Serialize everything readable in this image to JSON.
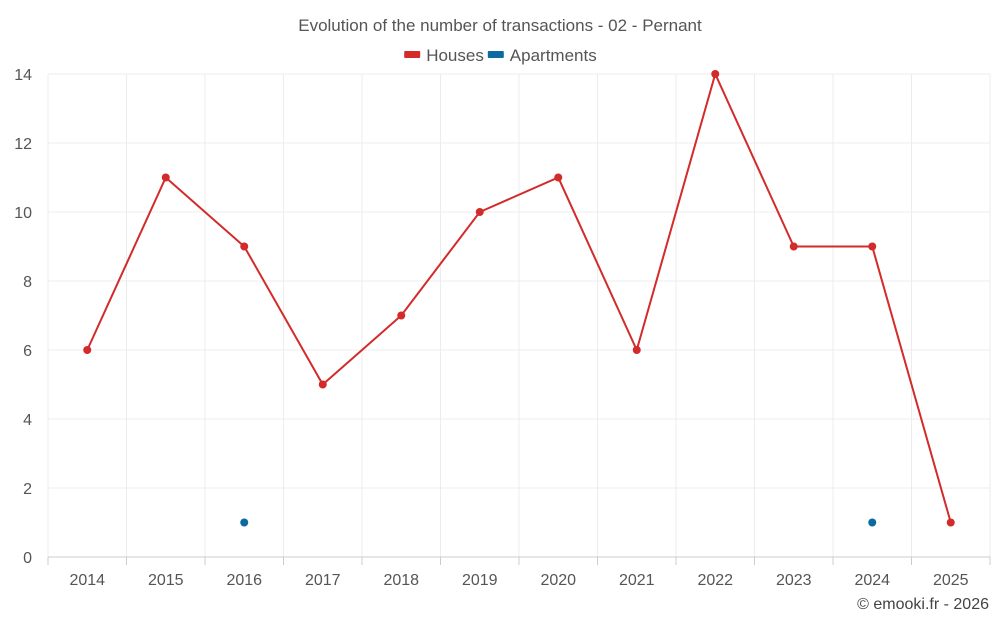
{
  "chart_data": {
    "type": "line",
    "title": "Evolution of the number of transactions - 02 - Pernant",
    "categories": [
      "2014",
      "2015",
      "2016",
      "2017",
      "2018",
      "2019",
      "2020",
      "2021",
      "2022",
      "2023",
      "2024",
      "2025"
    ],
    "ylim": [
      0,
      14
    ],
    "yticks": [
      0,
      2,
      4,
      6,
      8,
      10,
      12,
      14
    ],
    "grid": true,
    "legend_position": "top-center",
    "series": [
      {
        "name": "Houses",
        "color": "#d32a2a",
        "values": [
          6,
          11,
          9,
          5,
          7,
          10,
          11,
          6,
          14,
          9,
          9,
          1
        ]
      },
      {
        "name": "Apartments",
        "color": "#0a6aa1",
        "values": [
          null,
          null,
          1,
          null,
          null,
          null,
          null,
          null,
          null,
          null,
          1,
          null
        ]
      }
    ]
  },
  "credit": "© emooki.fr - 2026"
}
